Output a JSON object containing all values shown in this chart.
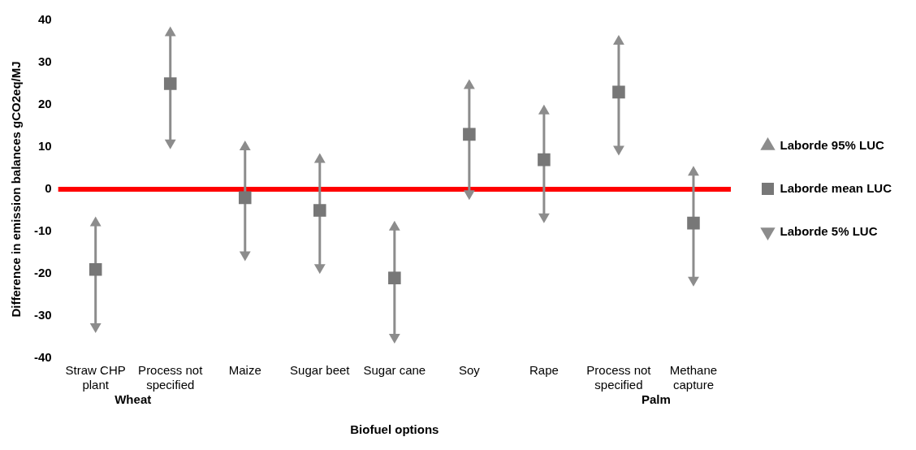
{
  "chart_data": {
    "type": "scatter",
    "ylabel": "Difference in emission balances gCO2eq/MJ",
    "xlabel": "Biofuel options",
    "categories": [
      "Straw CHP plant",
      "Process not specified",
      "Maize",
      "Sugar beet",
      "Sugar cane",
      "Soy",
      "Rape",
      "Process not specified",
      "Methane capture"
    ],
    "series": [
      {
        "name": "Laborde 95% LUC",
        "color": "#8c8c8c",
        "marker": "triangle",
        "values": [
          -8,
          37,
          10,
          7,
          -9,
          24.5,
          18.5,
          35,
          4
        ]
      },
      {
        "name": "Laborde mean LUC",
        "color": "#777777",
        "marker": "square",
        "values": [
          -19,
          25,
          -2,
          -5,
          -21,
          13,
          7,
          23,
          -8
        ]
      },
      {
        "name": "Laborde 5% LUC",
        "color": "#8c8c8c",
        "marker": "triangle",
        "values": [
          -32.5,
          11,
          -15.5,
          -18.5,
          -35,
          -1,
          -6.5,
          9.5,
          -21.5
        ]
      }
    ],
    "ylim": [
      -40,
      40
    ],
    "yticks": [
      -40,
      -30,
      -20,
      -10,
      0,
      10,
      20,
      30,
      40
    ],
    "grid": false,
    "legend": "right",
    "ref_lines": [
      {
        "axis": "y",
        "value": 0,
        "color": "#ff0000"
      }
    ],
    "annotations": [
      "Wheat",
      "Palm"
    ]
  }
}
